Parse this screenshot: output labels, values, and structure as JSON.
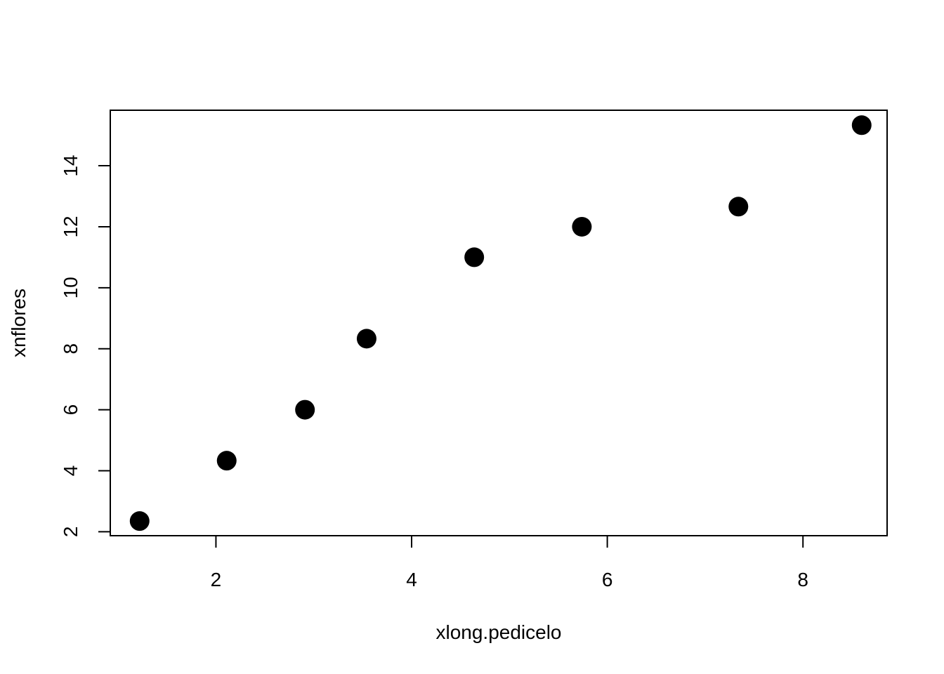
{
  "chart_data": {
    "type": "scatter",
    "title": "",
    "xlabel": "xlong.pedicelo",
    "ylabel": "xnflores",
    "xlim": [
      0.92,
      8.86
    ],
    "ylim": [
      1.87,
      15.82
    ],
    "x_ticks": [
      2,
      4,
      6,
      8
    ],
    "y_ticks": [
      2,
      4,
      6,
      8,
      10,
      12,
      14
    ],
    "grid": false,
    "legend": "none",
    "point_color": "#000000",
    "points": [
      {
        "x": 1.22,
        "y": 2.35
      },
      {
        "x": 2.11,
        "y": 4.33
      },
      {
        "x": 2.91,
        "y": 6.0
      },
      {
        "x": 3.54,
        "y": 8.33
      },
      {
        "x": 4.64,
        "y": 11.0
      },
      {
        "x": 5.74,
        "y": 12.0
      },
      {
        "x": 7.34,
        "y": 12.66
      },
      {
        "x": 8.6,
        "y": 15.33
      }
    ]
  }
}
